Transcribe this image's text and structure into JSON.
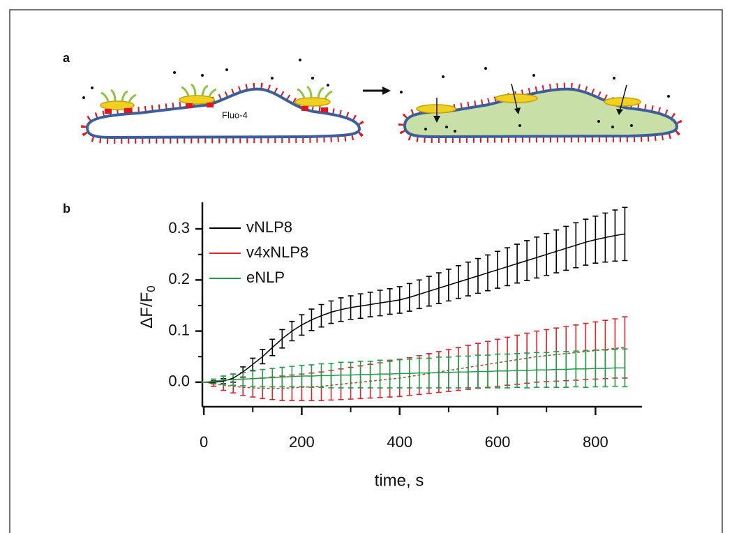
{
  "diagram": {
    "panel_label": "a",
    "cell_label": "Fluo-4"
  },
  "chart_data": {
    "type": "line",
    "panel_label": "b",
    "x_label": "time, s",
    "y_label": "ΔF/F",
    "y_label_sub": "0",
    "x": [
      0,
      20,
      40,
      60,
      80,
      100,
      120,
      140,
      160,
      180,
      200,
      220,
      240,
      260,
      280,
      300,
      320,
      340,
      360,
      380,
      400,
      420,
      440,
      460,
      480,
      500,
      520,
      540,
      560,
      580,
      600,
      620,
      640,
      660,
      680,
      700,
      720,
      740,
      760,
      780,
      800,
      820,
      840,
      860
    ],
    "series": [
      {
        "name": "vNLP8",
        "color": "#000000",
        "values": [
          0,
          0,
          0.002,
          0.008,
          0.02,
          0.035,
          0.05,
          0.068,
          0.085,
          0.1,
          0.112,
          0.122,
          0.13,
          0.137,
          0.142,
          0.146,
          0.149,
          0.152,
          0.155,
          0.158,
          0.161,
          0.166,
          0.172,
          0.178,
          0.184,
          0.19,
          0.196,
          0.202,
          0.208,
          0.214,
          0.22,
          0.226,
          0.232,
          0.238,
          0.244,
          0.25,
          0.256,
          0.262,
          0.268,
          0.274,
          0.279,
          0.283,
          0.287,
          0.29
        ],
        "errors": [
          0,
          0.003,
          0.005,
          0.008,
          0.01,
          0.012,
          0.014,
          0.016,
          0.018,
          0.019,
          0.02,
          0.021,
          0.022,
          0.022,
          0.023,
          0.023,
          0.024,
          0.024,
          0.025,
          0.025,
          0.026,
          0.027,
          0.028,
          0.029,
          0.03,
          0.031,
          0.032,
          0.033,
          0.034,
          0.035,
          0.036,
          0.037,
          0.038,
          0.039,
          0.04,
          0.041,
          0.042,
          0.043,
          0.044,
          0.045,
          0.046,
          0.048,
          0.05,
          0.052
        ]
      },
      {
        "name": "v4xNLP8",
        "color": "#e8202a",
        "values": [
          0,
          -0.003,
          -0.006,
          -0.008,
          -0.01,
          -0.011,
          -0.012,
          -0.012,
          -0.012,
          -0.011,
          -0.01,
          -0.009,
          -0.008,
          -0.006,
          -0.004,
          -0.002,
          0,
          0.002,
          0.004,
          0.006,
          0.008,
          0.011,
          0.014,
          0.017,
          0.02,
          0.023,
          0.026,
          0.029,
          0.032,
          0.035,
          0.038,
          0.041,
          0.044,
          0.047,
          0.05,
          0.052,
          0.054,
          0.056,
          0.058,
          0.06,
          0.062,
          0.064,
          0.066,
          0.068
        ],
        "errors": [
          0,
          0.005,
          0.01,
          0.013,
          0.016,
          0.018,
          0.02,
          0.022,
          0.024,
          0.025,
          0.026,
          0.027,
          0.028,
          0.029,
          0.03,
          0.031,
          0.032,
          0.033,
          0.034,
          0.035,
          0.036,
          0.037,
          0.038,
          0.039,
          0.04,
          0.041,
          0.042,
          0.043,
          0.044,
          0.045,
          0.046,
          0.047,
          0.048,
          0.049,
          0.05,
          0.051,
          0.052,
          0.053,
          0.054,
          0.055,
          0.056,
          0.057,
          0.058,
          0.06
        ]
      },
      {
        "name": "eNLP",
        "color": "#1e9e4a",
        "values": [
          0,
          0.002,
          0.004,
          0.005,
          0.006,
          0.007,
          0.008,
          0.009,
          0.01,
          0.011,
          0.012,
          0.012,
          0.013,
          0.013,
          0.014,
          0.014,
          0.015,
          0.015,
          0.016,
          0.016,
          0.017,
          0.017,
          0.018,
          0.018,
          0.019,
          0.019,
          0.02,
          0.02,
          0.021,
          0.021,
          0.022,
          0.022,
          0.023,
          0.023,
          0.024,
          0.024,
          0.025,
          0.025,
          0.026,
          0.026,
          0.027,
          0.027,
          0.028,
          0.028
        ],
        "errors": [
          0,
          0.004,
          0.008,
          0.011,
          0.013,
          0.015,
          0.017,
          0.018,
          0.019,
          0.02,
          0.021,
          0.022,
          0.023,
          0.024,
          0.025,
          0.025,
          0.026,
          0.026,
          0.027,
          0.027,
          0.028,
          0.028,
          0.029,
          0.029,
          0.03,
          0.03,
          0.031,
          0.031,
          0.032,
          0.032,
          0.033,
          0.033,
          0.033,
          0.034,
          0.034,
          0.034,
          0.035,
          0.035,
          0.035,
          0.036,
          0.036,
          0.036,
          0.036,
          0.037
        ]
      }
    ],
    "xlim": [
      -3,
      895
    ],
    "ylim": [
      -0.048,
      0.352
    ],
    "xticks": [
      0,
      200,
      400,
      600,
      800
    ],
    "xminorticks": [
      100,
      300,
      500,
      700
    ],
    "yticks": [
      {
        "value": 0,
        "label": "0.0"
      },
      0.1,
      0.2,
      0.3
    ],
    "yminorticks": [
      0.05,
      0.15,
      0.25
    ],
    "legend": "upper left"
  }
}
